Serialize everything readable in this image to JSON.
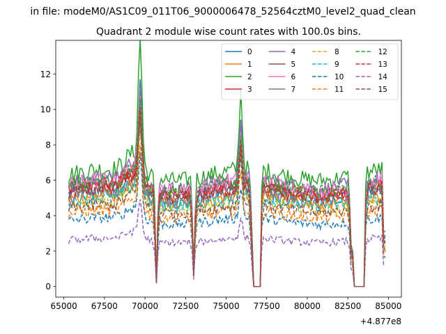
{
  "figure": {
    "suptitle": "in file: modeM0/AS1C09_011T06_9000006478_52564cztM0_level2_quad_clean",
    "title": "Quadrant 2 module wise count rates with 100.0s bins.",
    "offset_label": "+4.877e8"
  },
  "chart_data": {
    "type": "line",
    "title": "Quadrant 2 module wise count rates with 100.0s bins.",
    "xlabel": "",
    "ylabel": "",
    "x_offset": 487700000,
    "xlim": [
      64500,
      85800
    ],
    "ylim": [
      -0.6,
      13.9
    ],
    "xticks": [
      65000,
      67500,
      70000,
      72500,
      75000,
      77500,
      80000,
      82500,
      85000
    ],
    "xtick_labels": [
      "65000",
      "67500",
      "70000",
      "72500",
      "75000",
      "77500",
      "80000",
      "82500",
      "85000"
    ],
    "yticks": [
      0,
      2,
      4,
      6,
      8,
      10,
      12
    ],
    "ytick_labels": [
      "0",
      "2",
      "4",
      "6",
      "8",
      "10",
      "12"
    ],
    "grid": false,
    "legend_position": "top-right",
    "legend_columns": 4,
    "data_bin_width_s": 100,
    "base_levels_note": "",
    "series": [
      {
        "name": "0",
        "color": "#1f77b4",
        "dash": "solid",
        "base": 5.2,
        "peak1": 11.0,
        "peak2": 9.2
      },
      {
        "name": "1",
        "color": "#ff7f0e",
        "dash": "solid",
        "base": 4.9,
        "peak1": 9.0,
        "peak2": 7.6
      },
      {
        "name": "2",
        "color": "#2ca02c",
        "dash": "solid",
        "base": 6.3,
        "peak1": 13.2,
        "peak2": 10.7
      },
      {
        "name": "3",
        "color": "#d62728",
        "dash": "solid",
        "base": 5.5,
        "peak1": 9.8,
        "peak2": 8.0
      },
      {
        "name": "4",
        "color": "#9467bd",
        "dash": "solid",
        "base": 5.8,
        "peak1": 10.5,
        "peak2": 8.6
      },
      {
        "name": "5",
        "color": "#8c564b",
        "dash": "solid",
        "base": 5.4,
        "peak1": 9.5,
        "peak2": 7.9
      },
      {
        "name": "6",
        "color": "#e377c2",
        "dash": "solid",
        "base": 5.7,
        "peak1": 10.0,
        "peak2": 8.4
      },
      {
        "name": "7",
        "color": "#7f7f7f",
        "dash": "solid",
        "base": 5.0,
        "peak1": 9.2,
        "peak2": 7.7
      },
      {
        "name": "8",
        "color": "#bcbd22",
        "dash": "dashed",
        "base": 4.6,
        "peak1": 8.4,
        "peak2": 7.0
      },
      {
        "name": "9",
        "color": "#17becf",
        "dash": "dashed",
        "base": 4.8,
        "peak1": 8.6,
        "peak2": 7.2
      },
      {
        "name": "10",
        "color": "#1f77b4",
        "dash": "dashed",
        "base": 3.7,
        "peak1": 7.0,
        "peak2": 5.6
      },
      {
        "name": "11",
        "color": "#ff7f0e",
        "dash": "dashed",
        "base": 4.1,
        "peak1": 7.5,
        "peak2": 6.2
      },
      {
        "name": "12",
        "color": "#2ca02c",
        "dash": "dashed",
        "base": 5.6,
        "peak1": 9.6,
        "peak2": 8.2
      },
      {
        "name": "13",
        "color": "#d62728",
        "dash": "dashed",
        "base": 5.3,
        "peak1": 9.3,
        "peak2": 7.9
      },
      {
        "name": "14",
        "color": "#9467bd",
        "dash": "dashed",
        "base": 2.6,
        "peak1": 4.6,
        "peak2": 3.8
      },
      {
        "name": "15",
        "color": "#8c564b",
        "dash": "dashed",
        "base": 4.4,
        "peak1": 8.9,
        "peak2": 7.3
      }
    ],
    "x_range_data": [
      65300,
      84800
    ],
    "features": {
      "peaks": [
        69700,
        75900
      ],
      "dips": [
        70700,
        73000,
        82700
      ],
      "gaps_zero": [
        [
          76700,
          77100
        ],
        [
          82900,
          83500
        ]
      ]
    }
  }
}
